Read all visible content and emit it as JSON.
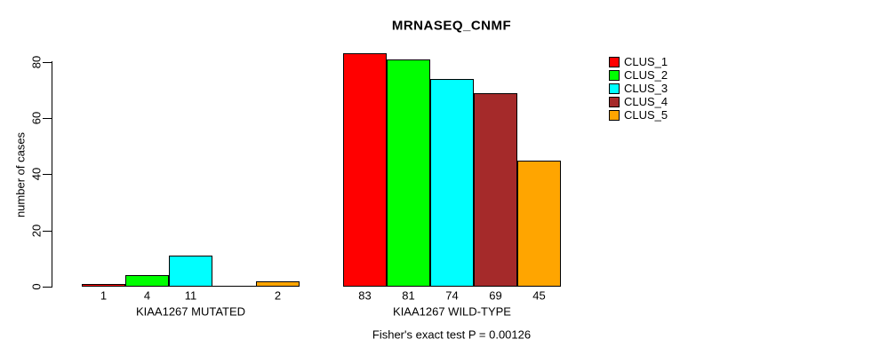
{
  "chart_data": {
    "type": "bar",
    "title": "MRNASEQ_CNMF",
    "ylabel": "number of cases",
    "xlabel": "",
    "ylim": [
      0,
      83
    ],
    "yticks": [
      0,
      20,
      40,
      60,
      80
    ],
    "grid": false,
    "legend_position": "right",
    "series": [
      {
        "name": "CLUS_1",
        "color": "#FF0000"
      },
      {
        "name": "CLUS_2",
        "color": "#00FF00"
      },
      {
        "name": "CLUS_3",
        "color": "#00FFFF"
      },
      {
        "name": "CLUS_4",
        "color": "#A52A2A"
      },
      {
        "name": "CLUS_5",
        "color": "#FFA500"
      }
    ],
    "groups": [
      {
        "label": "KIAA1267 MUTATED",
        "values": [
          1,
          4,
          11,
          0,
          2
        ],
        "bar_labels": [
          "1",
          "4",
          "11",
          "",
          "2"
        ]
      },
      {
        "label": "KIAA1267 WILD-TYPE",
        "values": [
          83,
          81,
          74,
          69,
          45
        ],
        "bar_labels": [
          "83",
          "81",
          "74",
          "69",
          "45"
        ]
      }
    ],
    "annotation": "Fisher's exact test P = 0.00126"
  }
}
